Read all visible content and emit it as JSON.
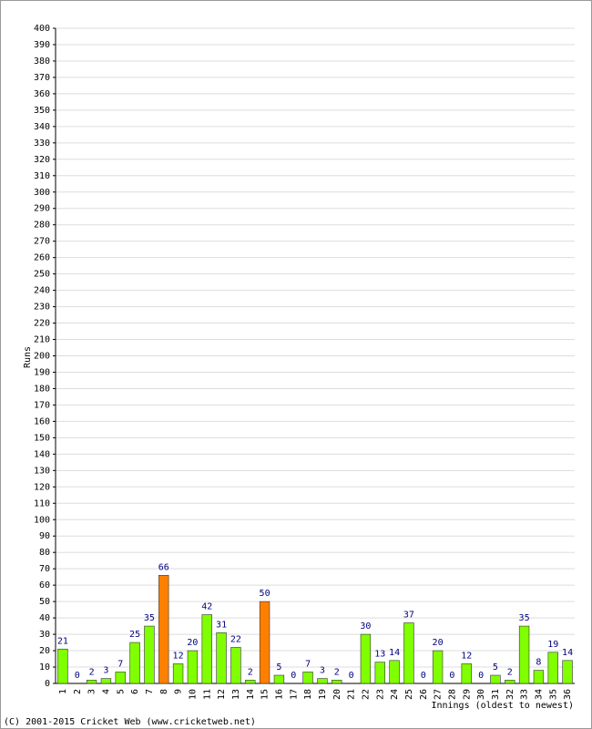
{
  "chart_data": {
    "type": "bar",
    "y_label": "Runs",
    "x_label": "Innings (oldest to newest)",
    "footer": "(C) 2001-2015 Cricket Web (www.cricketweb.net)",
    "categories": [
      "1",
      "2",
      "3",
      "4",
      "5",
      "6",
      "7",
      "8",
      "9",
      "10",
      "11",
      "12",
      "13",
      "14",
      "15",
      "16",
      "17",
      "18",
      "19",
      "20",
      "21",
      "22",
      "23",
      "24",
      "25",
      "26",
      "27",
      "28",
      "29",
      "30",
      "31",
      "32",
      "33",
      "34",
      "35",
      "36"
    ],
    "values": [
      21,
      0,
      2,
      3,
      7,
      25,
      35,
      66,
      12,
      20,
      42,
      31,
      22,
      2,
      50,
      5,
      0,
      7,
      3,
      2,
      0,
      30,
      13,
      14,
      37,
      0,
      20,
      0,
      12,
      0,
      5,
      2,
      35,
      8,
      19,
      14
    ],
    "colors": [
      "#80ff00",
      "#80ff00",
      "#80ff00",
      "#80ff00",
      "#80ff00",
      "#80ff00",
      "#80ff00",
      "#ff8000",
      "#80ff00",
      "#80ff00",
      "#80ff00",
      "#80ff00",
      "#80ff00",
      "#80ff00",
      "#ff8000",
      "#80ff00",
      "#80ff00",
      "#80ff00",
      "#80ff00",
      "#80ff00",
      "#80ff00",
      "#80ff00",
      "#80ff00",
      "#80ff00",
      "#80ff00",
      "#80ff00",
      "#80ff00",
      "#80ff00",
      "#80ff00",
      "#80ff00",
      "#80ff00",
      "#80ff00",
      "#80ff00",
      "#80ff00",
      "#80ff00",
      "#80ff00"
    ],
    "ylim": [
      0,
      400
    ],
    "yticks": [
      0,
      10,
      20,
      30,
      40,
      50,
      60,
      70,
      80,
      90,
      100,
      110,
      120,
      130,
      140,
      150,
      160,
      170,
      180,
      190,
      200,
      210,
      220,
      230,
      240,
      250,
      260,
      270,
      280,
      290,
      300,
      310,
      320,
      330,
      340,
      350,
      360,
      370,
      380,
      390,
      400
    ],
    "grid": true
  }
}
